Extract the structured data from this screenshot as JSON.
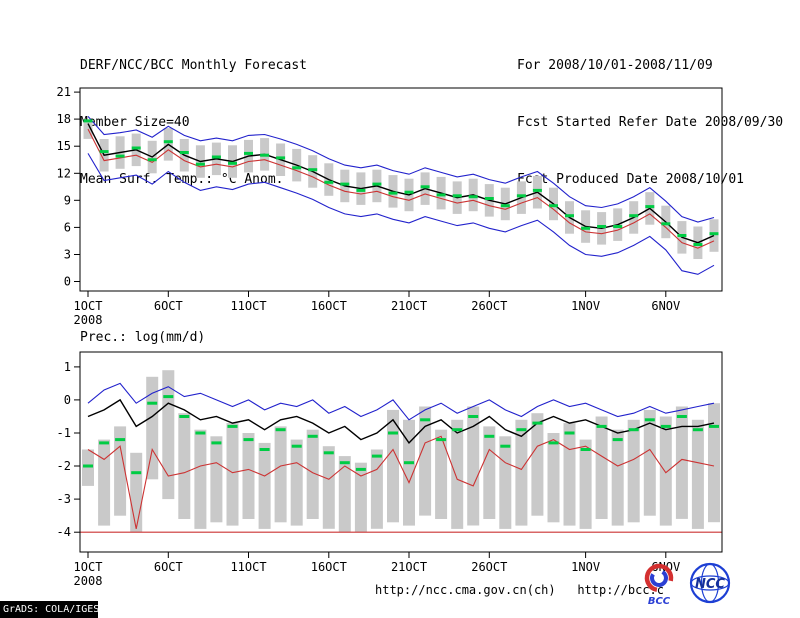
{
  "colors": {
    "bar": "#c9c9c9",
    "blue": "#2222cc",
    "red": "#cc3333",
    "black": "#000000",
    "green": "#00cc44",
    "text": "#000000",
    "logo_red": "#d43030",
    "logo_blue": "#2b3fd4"
  },
  "header": {
    "left": [
      "DERF/NCC/BCC Monthly Forecast",
      "Member Size=40",
      "Mean Surf. Temp.: °C Anom."
    ],
    "right": [
      "For 2008/10/01-2008/11/09",
      "Fcst Started Refer Date 2008/09/30",
      "Fcst Produced Date 2008/10/01"
    ]
  },
  "panel2": {
    "label": "Prec.: log(mm/d)"
  },
  "footer": {
    "url_ncc": "http://ncc.cma.gov.cn(ch)",
    "url_bcc": "http://bcc.c",
    "bcc_logo_text": "BCC",
    "ncc_logo_text": "NCC",
    "grads_credit": "GrADS: COLA/IGES"
  },
  "x_axis": {
    "n_days": 40,
    "ticks": [
      {
        "day": 1,
        "label": "1OCT",
        "sub": "2008"
      },
      {
        "day": 6,
        "label": "6OCT"
      },
      {
        "day": 11,
        "label": "11OCT"
      },
      {
        "day": 16,
        "label": "16OCT"
      },
      {
        "day": 21,
        "label": "21OCT"
      },
      {
        "day": 26,
        "label": "26OCT"
      },
      {
        "day": 32,
        "label": "1NOV"
      },
      {
        "day": 37,
        "label": "6NOV"
      }
    ]
  },
  "chart_data": [
    {
      "type": "line",
      "name": "surface-temp-anomaly",
      "title": "Mean Surf. Temp.: °C Anom.",
      "ylim": [
        -1.05,
        21.45
      ],
      "yticks": [
        0,
        3,
        6,
        9,
        12,
        15,
        18,
        21
      ],
      "bars": {
        "low": [
          15.8,
          12.2,
          12.5,
          12.8,
          12.0,
          13.4,
          12.2,
          11.5,
          11.8,
          11.5,
          12.1,
          12.3,
          11.7,
          11.1,
          10.4,
          9.5,
          8.8,
          8.5,
          8.8,
          8.2,
          7.8,
          8.5,
          8.0,
          7.5,
          7.8,
          7.2,
          6.8,
          7.5,
          8.1,
          6.8,
          5.3,
          4.3,
          4.1,
          4.5,
          5.3,
          6.3,
          4.8,
          3.1,
          2.5,
          3.3
        ],
        "high": [
          17.9,
          15.8,
          16.1,
          16.4,
          15.6,
          17.0,
          15.8,
          15.1,
          15.4,
          15.1,
          15.7,
          15.9,
          15.3,
          14.7,
          14.0,
          13.1,
          12.4,
          12.1,
          12.4,
          11.8,
          11.4,
          12.1,
          11.6,
          11.1,
          11.4,
          10.8,
          10.4,
          11.1,
          11.7,
          10.4,
          8.9,
          7.9,
          7.7,
          8.1,
          8.9,
          9.9,
          8.4,
          6.7,
          6.1,
          6.9
        ]
      },
      "series": [
        {
          "name": "ensemble-max",
          "color_key": "blue",
          "values": [
            18.3,
            16.3,
            16.5,
            16.8,
            16.0,
            17.2,
            16.2,
            15.6,
            15.9,
            15.6,
            16.2,
            16.3,
            15.8,
            15.2,
            14.5,
            13.6,
            12.9,
            12.6,
            12.9,
            12.3,
            11.9,
            12.6,
            12.1,
            11.6,
            11.9,
            11.3,
            10.9,
            11.6,
            12.2,
            10.9,
            9.4,
            8.4,
            8.2,
            8.6,
            9.4,
            10.4,
            8.9,
            7.2,
            6.6,
            7.1
          ]
        },
        {
          "name": "ensemble-min",
          "color_key": "blue",
          "values": [
            14.2,
            11.2,
            11.5,
            11.8,
            10.8,
            12.2,
            11.0,
            10.1,
            10.5,
            10.2,
            10.8,
            11.0,
            10.4,
            9.8,
            9.1,
            8.2,
            7.5,
            7.2,
            7.5,
            6.9,
            6.5,
            7.2,
            6.7,
            6.2,
            6.5,
            5.9,
            5.5,
            6.2,
            6.8,
            5.5,
            4.0,
            3.0,
            2.8,
            3.2,
            4.0,
            5.0,
            3.5,
            1.2,
            0.8,
            1.8
          ]
        },
        {
          "name": "control-run",
          "color_key": "red",
          "values": [
            16.9,
            13.4,
            13.7,
            14.0,
            13.2,
            14.6,
            13.4,
            12.7,
            13.0,
            12.7,
            13.3,
            13.5,
            12.9,
            12.3,
            11.6,
            10.7,
            10.0,
            9.7,
            10.0,
            9.4,
            9.0,
            9.7,
            9.2,
            8.7,
            9.0,
            8.4,
            8.0,
            8.7,
            9.3,
            8.0,
            6.5,
            5.5,
            5.3,
            5.7,
            6.5,
            7.5,
            6.0,
            4.3,
            3.7,
            4.5
          ]
        },
        {
          "name": "ensemble-mean",
          "color_key": "black",
          "values": [
            17.5,
            14.0,
            14.3,
            14.6,
            13.8,
            15.2,
            14.0,
            13.3,
            13.6,
            13.3,
            13.9,
            14.1,
            13.5,
            12.9,
            12.2,
            11.3,
            10.6,
            10.3,
            10.6,
            10.0,
            9.6,
            10.3,
            9.8,
            9.3,
            9.6,
            9.0,
            8.6,
            9.3,
            9.9,
            8.6,
            7.1,
            6.1,
            5.9,
            6.3,
            7.1,
            8.1,
            6.6,
            4.9,
            4.3,
            5.1
          ]
        }
      ],
      "markers": {
        "name": "observation",
        "color_key": "green",
        "values": [
          17.8,
          14.4,
          13.9,
          14.8,
          13.5,
          15.5,
          14.3,
          13.0,
          13.8,
          13.1,
          14.2,
          14.0,
          13.7,
          12.6,
          12.4,
          11.0,
          10.8,
          10.1,
          10.8,
          9.8,
          9.9,
          10.5,
          9.6,
          9.5,
          9.4,
          9.2,
          8.4,
          9.5,
          10.1,
          8.4,
          7.3,
          5.9,
          6.1,
          6.1,
          7.3,
          8.3,
          6.4,
          5.1,
          4.1,
          5.3
        ]
      }
    },
    {
      "type": "line",
      "name": "precipitation",
      "title": "Prec.: log(mm/d)",
      "ylim": [
        -4.6,
        1.45
      ],
      "yticks": [
        1,
        0,
        -1,
        -2,
        -3,
        -4
      ],
      "baseline": -4,
      "bars": {
        "low": [
          -2.6,
          -3.8,
          -3.5,
          -4.0,
          -2.4,
          -3.0,
          -3.6,
          -3.9,
          -3.7,
          -3.8,
          -3.6,
          -3.9,
          -3.7,
          -3.8,
          -3.6,
          -3.9,
          -4.0,
          -4.0,
          -3.9,
          -3.7,
          -3.8,
          -3.5,
          -3.6,
          -3.9,
          -3.8,
          -3.6,
          -3.9,
          -3.8,
          -3.5,
          -3.7,
          -3.8,
          -3.9,
          -3.6,
          -3.8,
          -3.7,
          -3.5,
          -3.8,
          -3.6,
          -3.9,
          -3.7
        ],
        "high": [
          -1.5,
          -1.2,
          -0.8,
          -1.6,
          0.7,
          0.9,
          -0.4,
          -0.9,
          -1.1,
          -0.7,
          -1.0,
          -1.3,
          -0.8,
          -1.2,
          -0.9,
          -1.4,
          -1.7,
          -1.9,
          -1.5,
          -0.3,
          -0.6,
          -0.2,
          -0.9,
          -0.6,
          -0.2,
          -0.8,
          -1.1,
          -0.6,
          -0.4,
          -1.0,
          -0.7,
          -1.2,
          -0.5,
          -0.9,
          -0.6,
          -0.3,
          -0.5,
          -0.2,
          -0.6,
          -0.1
        ]
      },
      "series": [
        {
          "name": "ensemble-max",
          "color_key": "blue",
          "values": [
            -0.1,
            0.3,
            0.5,
            -0.1,
            0.2,
            0.4,
            0.1,
            0.2,
            0.0,
            -0.2,
            0.0,
            -0.3,
            -0.1,
            -0.2,
            0.0,
            -0.4,
            -0.2,
            -0.5,
            -0.3,
            0.0,
            -0.6,
            -0.3,
            -0.1,
            -0.4,
            -0.2,
            0.0,
            -0.3,
            -0.5,
            -0.2,
            0.0,
            -0.2,
            -0.1,
            -0.3,
            -0.5,
            -0.4,
            -0.2,
            -0.4,
            -0.3,
            -0.2,
            -0.1
          ]
        },
        {
          "name": "ensemble-mean",
          "color_key": "black",
          "values": [
            -0.5,
            -0.3,
            0.0,
            -0.8,
            -0.5,
            -0.1,
            -0.3,
            -0.6,
            -0.5,
            -0.7,
            -0.6,
            -0.9,
            -0.6,
            -0.5,
            -0.7,
            -1.0,
            -0.8,
            -1.2,
            -1.0,
            -0.6,
            -1.3,
            -0.8,
            -0.6,
            -1.0,
            -0.8,
            -0.5,
            -0.9,
            -1.1,
            -0.7,
            -0.5,
            -0.7,
            -0.6,
            -0.8,
            -1.0,
            -0.9,
            -0.7,
            -0.9,
            -0.8,
            -0.8,
            -0.7
          ]
        },
        {
          "name": "control-run",
          "color_key": "red",
          "values": [
            -1.5,
            -1.8,
            -1.4,
            -3.9,
            -1.5,
            -2.3,
            -2.2,
            -2.0,
            -1.9,
            -2.2,
            -2.1,
            -2.3,
            -2.0,
            -1.9,
            -2.2,
            -2.4,
            -2.0,
            -2.3,
            -2.1,
            -1.5,
            -2.5,
            -1.3,
            -1.1,
            -2.4,
            -2.6,
            -1.5,
            -1.9,
            -2.1,
            -1.4,
            -1.2,
            -1.5,
            -1.4,
            -1.7,
            -2.0,
            -1.8,
            -1.5,
            -2.2,
            -1.8,
            -1.9,
            -2.0
          ]
        }
      ],
      "markers": {
        "name": "observation",
        "color_key": "green",
        "values": [
          -2.0,
          -1.3,
          -1.2,
          -2.2,
          -0.1,
          0.1,
          -0.5,
          -1.0,
          -1.3,
          -0.8,
          -1.2,
          -1.5,
          -0.9,
          -1.4,
          -1.1,
          -1.6,
          -1.9,
          -2.1,
          -1.7,
          -1.0,
          -1.9,
          -0.6,
          -1.2,
          -0.9,
          -0.5,
          -1.1,
          -1.4,
          -0.9,
          -0.7,
          -1.3,
          -1.0,
          -1.5,
          -0.8,
          -1.2,
          -0.9,
          -0.6,
          -0.8,
          -0.5,
          -0.9,
          -0.8
        ]
      }
    }
  ]
}
